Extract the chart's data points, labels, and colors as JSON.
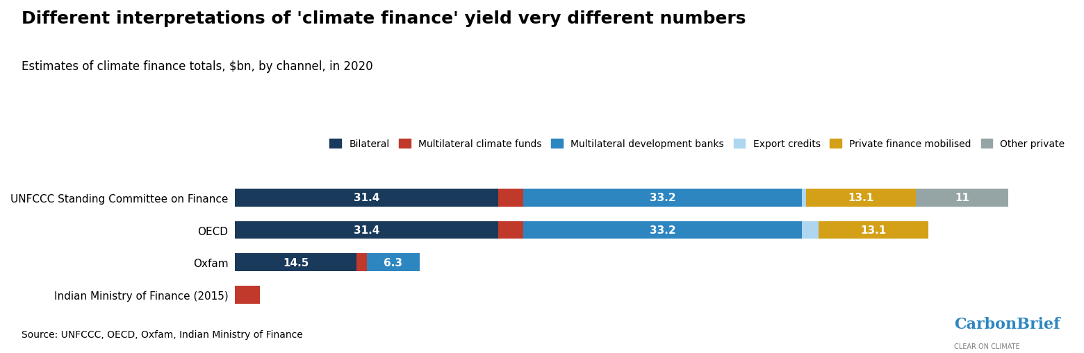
{
  "title": "Different interpretations of 'climate finance' yield very different numbers",
  "subtitle": "Estimates of climate finance totals, $bn, by channel, in 2020",
  "source": "Source: UNFCCC, OECD, Oxfam, Indian Ministry of Finance",
  "organizations": [
    "UNFCCC Standing Committee on Finance",
    "OECD",
    "Oxfam",
    "Indian Ministry of Finance (2015)"
  ],
  "categories": [
    "Bilateral",
    "Multilateral climate funds",
    "Multilateral development banks",
    "Export credits",
    "Private finance mobilised",
    "Other private"
  ],
  "colors": [
    "#1a3a5c",
    "#c0392b",
    "#2e86c1",
    "#aed6f1",
    "#d4a017",
    "#95a5a6"
  ],
  "data": [
    [
      31.4,
      3.0,
      33.2,
      0.5,
      13.1,
      11.0
    ],
    [
      31.4,
      3.0,
      33.2,
      2.0,
      13.1,
      0.0
    ],
    [
      14.5,
      1.2,
      6.3,
      0.0,
      0.0,
      0.0
    ],
    [
      0.0,
      3.0,
      0.0,
      0.0,
      0.0,
      0.0
    ]
  ],
  "labels": [
    [
      "31.4",
      "",
      "33.2",
      "",
      "13.1",
      "11"
    ],
    [
      "31.4",
      "",
      "33.2",
      "",
      "13.1",
      ""
    ],
    [
      "14.5",
      "",
      "6.3",
      "",
      "",
      ""
    ],
    [
      "",
      "",
      "",
      "",
      "",
      ""
    ]
  ],
  "background_color": "#ffffff",
  "bar_height": 0.55
}
